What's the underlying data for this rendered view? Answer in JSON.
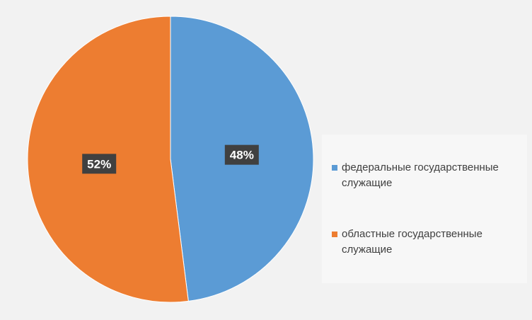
{
  "chart_data": {
    "type": "pie",
    "categories": [
      "федеральные государственные служащие",
      "областные государственные служащие"
    ],
    "values": [
      48,
      52
    ],
    "value_labels": [
      "48%",
      "52%"
    ],
    "colors": [
      "#5b9bd5",
      "#ed7d31"
    ],
    "legend": "right"
  }
}
